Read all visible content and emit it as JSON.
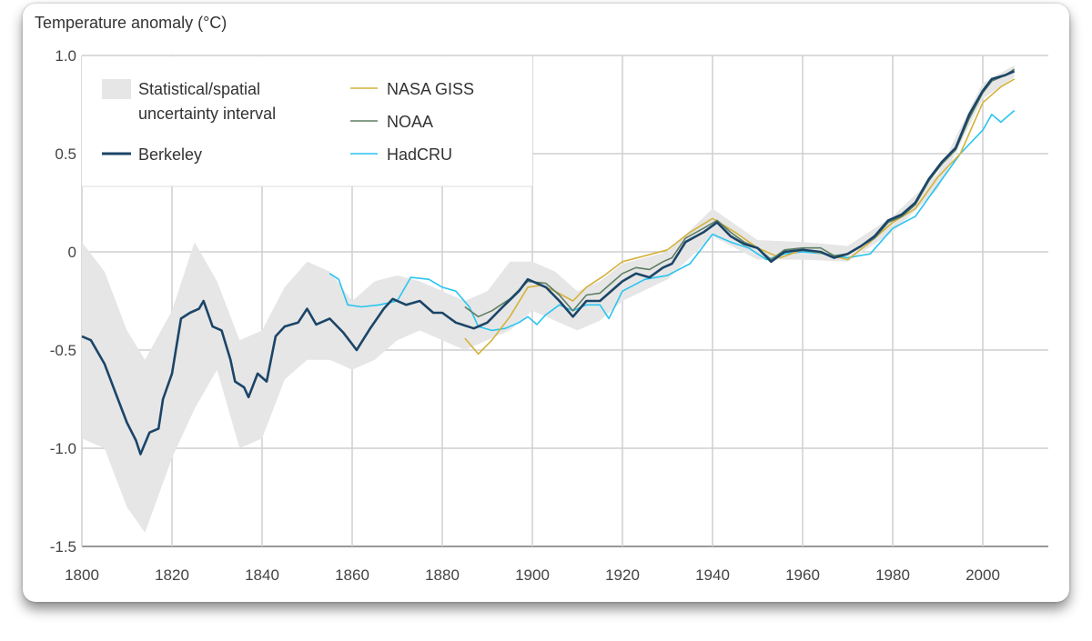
{
  "chart_data": {
    "type": "line",
    "ylabel": "Temperature anomaly (°C)",
    "xlabel": "",
    "xlim": [
      1800,
      2015
    ],
    "ylim": [
      -1.5,
      1.0
    ],
    "grid": true,
    "legend_placement": "top-left",
    "x_ticks": [
      "1800",
      "1820",
      "1840",
      "1860",
      "1880",
      "1900",
      "1920",
      "1940",
      "1960",
      "1980",
      "2000"
    ],
    "x_tick_values": [
      1800,
      1820,
      1840,
      1860,
      1880,
      1900,
      1920,
      1940,
      1960,
      1980,
      2000
    ],
    "y_ticks": [
      "1.0",
      "0.5",
      "0",
      "-0.5",
      "-1.0",
      "-1.5"
    ],
    "y_tick_values": [
      1.0,
      0.5,
      0,
      -0.5,
      -1.0,
      -1.5
    ],
    "legend": {
      "band": "Statistical/spatial",
      "band_line2": "uncertainty interval",
      "berkeley": "Berkeley",
      "giss": "NASA GISS",
      "noaa": "NOAA",
      "hadcru": "HadCRU"
    },
    "uncertainty_band": {
      "name": "Statistical/spatial uncertainty interval",
      "color": "#e6e6e6",
      "years": [
        1800,
        1805,
        1810,
        1814,
        1820,
        1825,
        1830,
        1835,
        1840,
        1845,
        1850,
        1855,
        1860,
        1865,
        1870,
        1875,
        1880,
        1885,
        1890,
        1895,
        1900,
        1905,
        1910,
        1915,
        1920,
        1930,
        1940,
        1950,
        1960,
        1970,
        1980,
        1990,
        2000,
        2007
      ],
      "upper": [
        0.05,
        -0.1,
        -0.4,
        -0.55,
        -0.3,
        0.05,
        -0.15,
        -0.45,
        -0.4,
        -0.18,
        -0.05,
        -0.1,
        -0.25,
        -0.15,
        -0.12,
        -0.15,
        -0.2,
        -0.25,
        -0.2,
        -0.05,
        -0.05,
        -0.1,
        -0.2,
        -0.15,
        -0.06,
        0.0,
        0.22,
        0.06,
        0.05,
        0.03,
        0.18,
        0.4,
        0.86,
        0.95
      ],
      "lower": [
        -0.95,
        -1.0,
        -1.3,
        -1.43,
        -1.05,
        -0.8,
        -0.6,
        -1.0,
        -0.95,
        -0.65,
        -0.55,
        -0.55,
        -0.6,
        -0.55,
        -0.45,
        -0.4,
        -0.45,
        -0.5,
        -0.45,
        -0.4,
        -0.3,
        -0.35,
        -0.4,
        -0.35,
        -0.25,
        -0.14,
        0.08,
        -0.04,
        -0.04,
        -0.05,
        0.1,
        0.32,
        0.78,
        0.89
      ]
    },
    "series": [
      {
        "name": "Berkeley",
        "key": "berkeley",
        "color": "#1b4568",
        "width": 2.6,
        "years": [
          1800,
          1802,
          1805,
          1808,
          1810,
          1812,
          1813,
          1815,
          1817,
          1818,
          1820,
          1822,
          1824,
          1826,
          1827,
          1829,
          1831,
          1833,
          1834,
          1836,
          1837,
          1839,
          1841,
          1843,
          1845,
          1848,
          1850,
          1852,
          1855,
          1858,
          1860,
          1861,
          1864,
          1867,
          1869,
          1872,
          1875,
          1878,
          1880,
          1883,
          1887,
          1890,
          1893,
          1897,
          1899,
          1903,
          1906,
          1909,
          1912,
          1915,
          1918,
          1920,
          1923,
          1926,
          1929,
          1931,
          1934,
          1938,
          1941,
          1944,
          1947,
          1950,
          1953,
          1956,
          1960,
          1964,
          1967,
          1970,
          1973,
          1976,
          1979,
          1982,
          1985,
          1988,
          1991,
          1994,
          1997,
          2000,
          2002,
          2005,
          2007
        ],
        "values": [
          -0.43,
          -0.45,
          -0.57,
          -0.75,
          -0.87,
          -0.96,
          -1.03,
          -0.92,
          -0.9,
          -0.75,
          -0.62,
          -0.34,
          -0.31,
          -0.29,
          -0.25,
          -0.38,
          -0.4,
          -0.55,
          -0.66,
          -0.69,
          -0.74,
          -0.62,
          -0.66,
          -0.43,
          -0.38,
          -0.36,
          -0.29,
          -0.37,
          -0.34,
          -0.41,
          -0.47,
          -0.5,
          -0.39,
          -0.29,
          -0.24,
          -0.27,
          -0.25,
          -0.31,
          -0.31,
          -0.36,
          -0.39,
          -0.36,
          -0.29,
          -0.2,
          -0.14,
          -0.18,
          -0.25,
          -0.33,
          -0.25,
          -0.25,
          -0.19,
          -0.15,
          -0.11,
          -0.13,
          -0.08,
          -0.06,
          0.05,
          0.1,
          0.15,
          0.08,
          0.04,
          0.02,
          -0.05,
          0.0,
          0.01,
          0.0,
          -0.03,
          -0.01,
          0.03,
          0.08,
          0.16,
          0.19,
          0.25,
          0.37,
          0.46,
          0.53,
          0.7,
          0.82,
          0.88,
          0.9,
          0.92
        ]
      },
      {
        "name": "NOAA",
        "key": "noaa",
        "color": "#5e7e62",
        "width": 1.6,
        "years": [
          1885,
          1888,
          1891,
          1895,
          1899,
          1903,
          1906,
          1909,
          1912,
          1915,
          1918,
          1920,
          1923,
          1926,
          1929,
          1931,
          1934,
          1938,
          1941,
          1944,
          1947,
          1950,
          1953,
          1956,
          1960,
          1964,
          1967,
          1970,
          1973,
          1976,
          1979,
          1982,
          1985,
          1988,
          1991,
          1994,
          1997,
          2000,
          2002,
          2005,
          2007
        ],
        "values": [
          -0.28,
          -0.33,
          -0.3,
          -0.24,
          -0.15,
          -0.16,
          -0.22,
          -0.3,
          -0.22,
          -0.21,
          -0.15,
          -0.11,
          -0.08,
          -0.09,
          -0.05,
          -0.03,
          0.07,
          0.12,
          0.16,
          0.1,
          0.05,
          0.02,
          -0.04,
          0.01,
          0.02,
          0.02,
          -0.02,
          -0.01,
          0.03,
          0.07,
          0.15,
          0.18,
          0.24,
          0.36,
          0.45,
          0.52,
          0.68,
          0.81,
          0.87,
          0.9,
          0.93
        ]
      },
      {
        "name": "NASA GISS",
        "key": "giss",
        "color": "#d4b23a",
        "width": 1.6,
        "years": [
          1885,
          1888,
          1891,
          1895,
          1899,
          1902,
          1905,
          1909,
          1912,
          1916,
          1920,
          1925,
          1930,
          1935,
          1940,
          1945,
          1950,
          1955,
          1960,
          1965,
          1970,
          1975,
          1980,
          1985,
          1990,
          1995,
          2000,
          2004,
          2007
        ],
        "values": [
          -0.44,
          -0.52,
          -0.45,
          -0.33,
          -0.18,
          -0.17,
          -0.2,
          -0.25,
          -0.18,
          -0.12,
          -0.05,
          -0.02,
          0.01,
          0.1,
          0.17,
          0.1,
          0.02,
          -0.03,
          0.01,
          -0.01,
          -0.04,
          0.05,
          0.15,
          0.22,
          0.38,
          0.5,
          0.76,
          0.84,
          0.88
        ]
      },
      {
        "name": "HadCRU",
        "key": "hadcru",
        "color": "#29c4f0",
        "width": 1.6,
        "years": [
          1855,
          1857,
          1859,
          1862,
          1866,
          1870,
          1873,
          1877,
          1880,
          1883,
          1886,
          1888,
          1891,
          1894,
          1897,
          1899,
          1901,
          1903,
          1906,
          1909,
          1912,
          1915,
          1917,
          1920,
          1925,
          1930,
          1935,
          1940,
          1944,
          1948,
          1952,
          1956,
          1960,
          1965,
          1970,
          1975,
          1980,
          1985,
          1990,
          1995,
          2000,
          2002,
          2004,
          2007
        ],
        "values": [
          -0.11,
          -0.14,
          -0.27,
          -0.28,
          -0.27,
          -0.25,
          -0.13,
          -0.14,
          -0.18,
          -0.2,
          -0.28,
          -0.38,
          -0.4,
          -0.39,
          -0.36,
          -0.33,
          -0.37,
          -0.32,
          -0.27,
          -0.3,
          -0.27,
          -0.27,
          -0.34,
          -0.2,
          -0.14,
          -0.12,
          -0.06,
          0.09,
          0.05,
          0.02,
          -0.04,
          -0.01,
          0.0,
          -0.01,
          -0.03,
          -0.01,
          0.12,
          0.18,
          0.34,
          0.5,
          0.62,
          0.7,
          0.66,
          0.72
        ]
      }
    ]
  }
}
